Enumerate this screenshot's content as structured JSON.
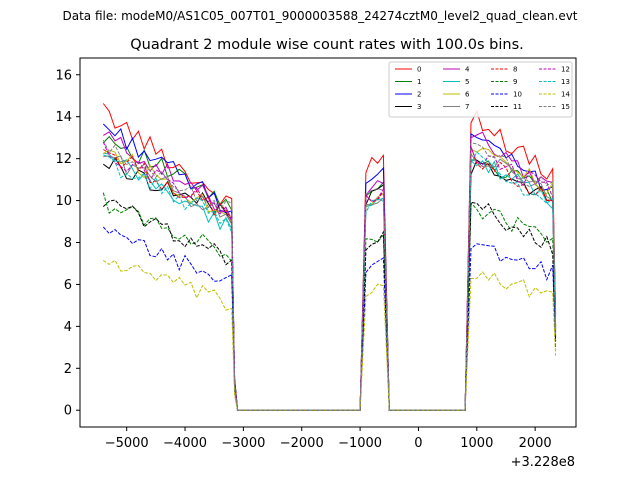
{
  "chart_data": {
    "type": "line",
    "suptitle": "Data file: modeM0/AS1C05_007T01_9000003588_24274cztM0_level2_quad_clean.evt",
    "title": "Quadrant 2 module wise count rates with 100.0s bins.",
    "xlabel": "",
    "ylabel": "",
    "x_offset_label": "+3.228e8",
    "xlim": [
      -5800,
      2700
    ],
    "ylim": [
      -0.8,
      16.8
    ],
    "xticks": [
      -5000,
      -4000,
      -3000,
      -2000,
      -1000,
      0,
      1000,
      2000
    ],
    "xtick_labels": [
      "−5000",
      "−4000",
      "−3000",
      "−2000",
      "−1000",
      "0",
      "1000",
      "2000"
    ],
    "yticks": [
      0,
      2,
      4,
      6,
      8,
      10,
      12,
      14,
      16
    ],
    "ytick_labels": [
      "0",
      "2",
      "4",
      "6",
      "8",
      "10",
      "12",
      "14",
      "16"
    ],
    "legend_position": "top-right",
    "segments": [
      {
        "start": -5400,
        "end": -3200,
        "bins": 23
      },
      {
        "start": -900,
        "end": -600,
        "bins": 4
      },
      {
        "start": 900,
        "end": 2300,
        "bins": 15
      }
    ],
    "gap_start": -3100,
    "gap_end": 2350,
    "series": [
      {
        "name": "0",
        "color": "#ff0000",
        "dash": "solid",
        "seg_means": [
          12.0,
          11.9,
          12.6
        ],
        "seg_slope": [
          -4.5,
          0.6,
          -3.0
        ],
        "edge_low": [
          1.0,
          4.6
        ]
      },
      {
        "name": "1",
        "color": "#008000",
        "dash": "solid",
        "seg_means": [
          11.4,
          10.6,
          11.2
        ],
        "seg_slope": [
          -3.5,
          0.4,
          -2.0
        ],
        "edge_low": [
          0.9,
          4.0
        ]
      },
      {
        "name": "2",
        "color": "#0000ff",
        "dash": "solid",
        "seg_means": [
          11.6,
          11.0,
          11.8
        ],
        "seg_slope": [
          -4.0,
          0.6,
          -2.4
        ],
        "edge_low": [
          1.5,
          4.5
        ]
      },
      {
        "name": "3",
        "color": "#000000",
        "dash": "solid",
        "seg_means": [
          10.6,
          10.3,
          10.9
        ],
        "seg_slope": [
          -2.5,
          0.4,
          -1.6
        ],
        "edge_low": [
          1.5,
          3.5
        ]
      },
      {
        "name": "4",
        "color": "#bf00bf",
        "dash": "solid",
        "seg_means": [
          11.3,
          10.6,
          11.9
        ],
        "seg_slope": [
          -3.7,
          0.4,
          -2.6
        ],
        "edge_low": [
          1.4,
          4.0
        ]
      },
      {
        "name": "5",
        "color": "#00bfbf",
        "dash": "solid",
        "seg_means": [
          10.4,
          10.0,
          11.0
        ],
        "seg_slope": [
          -3.5,
          0.3,
          -2.2
        ],
        "edge_low": [
          1.2,
          3.8
        ]
      },
      {
        "name": "6",
        "color": "#bfbf00",
        "dash": "solid",
        "seg_means": [
          10.9,
          10.0,
          11.6
        ],
        "seg_slope": [
          -3.3,
          0.3,
          -2.0
        ],
        "edge_low": [
          1.0,
          4.0
        ]
      },
      {
        "name": "7",
        "color": "#808080",
        "dash": "solid",
        "seg_means": [
          10.7,
          10.1,
          11.3
        ],
        "seg_slope": [
          -3.1,
          0.4,
          -2.1
        ],
        "edge_low": [
          1.1,
          3.9
        ]
      },
      {
        "name": "8",
        "color": "#ff0000",
        "dash": "dashed",
        "seg_means": [
          10.8,
          10.2,
          11.1
        ],
        "seg_slope": [
          -3.2,
          0.4,
          -2.2
        ],
        "edge_low": [
          1.3,
          3.8
        ]
      },
      {
        "name": "9",
        "color": "#008000",
        "dash": "dashed",
        "seg_means": [
          8.7,
          8.2,
          8.9
        ],
        "seg_slope": [
          -2.5,
          0.3,
          -1.6
        ],
        "edge_low": [
          1.0,
          3.3
        ]
      },
      {
        "name": "10",
        "color": "#0000ff",
        "dash": "dashed",
        "seg_means": [
          7.3,
          6.9,
          7.2
        ],
        "seg_slope": [
          -2.3,
          0.4,
          -1.4
        ],
        "edge_low": [
          1.1,
          3.0
        ]
      },
      {
        "name": "11",
        "color": "#000000",
        "dash": "dashed",
        "seg_means": [
          8.6,
          7.9,
          8.8
        ],
        "seg_slope": [
          -2.8,
          0.6,
          -2.1
        ],
        "edge_low": [
          1.1,
          3.3
        ]
      },
      {
        "name": "12",
        "color": "#bf00bf",
        "dash": "dashed",
        "seg_means": [
          10.9,
          10.3,
          11.4
        ],
        "seg_slope": [
          -2.9,
          0.3,
          -2.0
        ],
        "edge_low": [
          1.2,
          3.7
        ]
      },
      {
        "name": "13",
        "color": "#00bfbf",
        "dash": "dashed",
        "seg_means": [
          10.4,
          9.8,
          11.0
        ],
        "seg_slope": [
          -3.0,
          0.3,
          -2.2
        ],
        "edge_low": [
          1.1,
          3.6
        ]
      },
      {
        "name": "14",
        "color": "#bfbf00",
        "dash": "dashed",
        "seg_means": [
          6.1,
          5.9,
          6.1
        ],
        "seg_slope": [
          -2.2,
          0.4,
          -1.2
        ],
        "edge_low": [
          0.7,
          2.6
        ]
      },
      {
        "name": "15",
        "color": "#808080",
        "dash": "dashed",
        "seg_means": [
          11.0,
          10.3,
          11.5
        ],
        "seg_slope": [
          -3.0,
          0.3,
          -2.0
        ],
        "edge_low": [
          1.1,
          3.8
        ]
      }
    ]
  }
}
